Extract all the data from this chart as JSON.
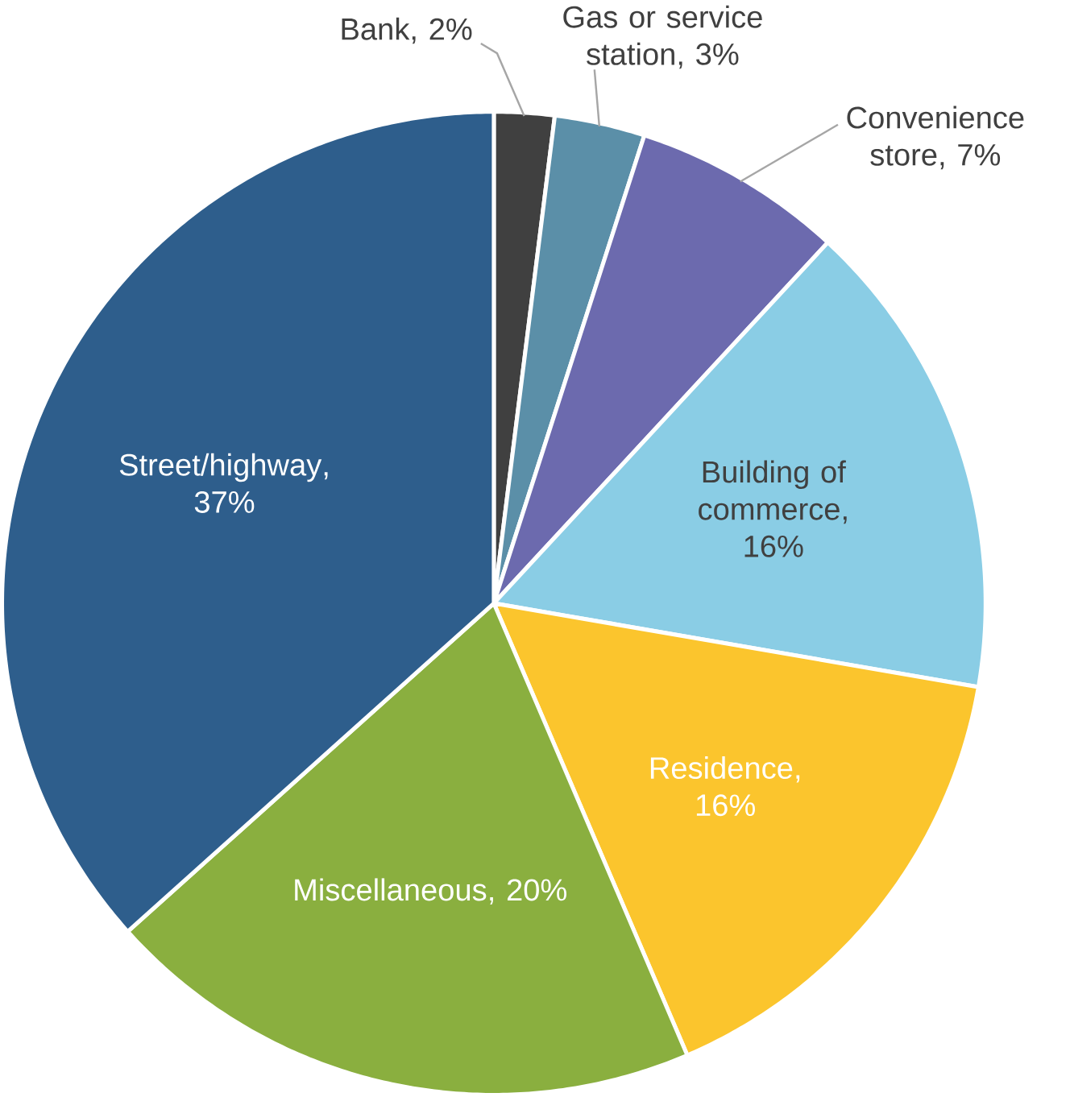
{
  "chart_data": {
    "type": "pie",
    "categories": [
      "Bank",
      "Gas or service station",
      "Convenience store",
      "Building of commerce",
      "Residence",
      "Miscellaneous",
      "Street/highway"
    ],
    "values": [
      2,
      3,
      7,
      16,
      16,
      20,
      37
    ],
    "colors": [
      "#404040",
      "#5b8fa8",
      "#6c6aae",
      "#8acde5",
      "#fbc52d",
      "#8aaf3f",
      "#2e5e8c"
    ],
    "value_labels": [
      ", 2%",
      ", 3%",
      ", 7%",
      ", 16%",
      ", 16%",
      ", 20%",
      ", 37%"
    ]
  }
}
